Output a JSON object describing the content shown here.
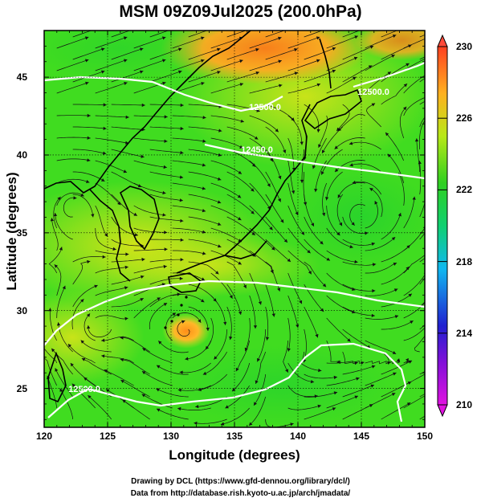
{
  "title": "MSM 09Z09Jul2025 (200.0hPa)",
  "chart_data": {
    "type": "heatmap",
    "title": "MSM 09Z09Jul2025 (200.0hPa)",
    "xlabel": "Longitude (degrees)",
    "ylabel": "Latitude  (degrees)",
    "xlim": [
      120,
      150
    ],
    "ylim": [
      22.5,
      48
    ],
    "x_ticks": [
      "120",
      "125",
      "130",
      "135",
      "140",
      "145",
      "150"
    ],
    "y_ticks": [
      "25",
      "30",
      "35",
      "40",
      "45"
    ],
    "colorbar": {
      "range": [
        210,
        230
      ],
      "ticks": [
        "210",
        "214",
        "218",
        "222",
        "226",
        "230"
      ]
    },
    "contour_labels": [
      "12500.0",
      "12450.0",
      "12500.0",
      "12500.0"
    ],
    "features": {
      "warm_anomalies": [
        {
          "lon": 133,
          "lat": 47,
          "value": 228
        },
        {
          "lon": 131,
          "lat": 29,
          "value": 227.5
        },
        {
          "lon": 123,
          "lat": 29,
          "value": 225
        }
      ],
      "colors": {
        "background": "#33dd22",
        "yellowish": "#c8ea1e",
        "orange": "#ff8a1e"
      }
    }
  },
  "credits": {
    "line1": "Drawing by DCL (https://www.gfd-dennou.org/library/dcl/)",
    "line2": "Data from http://database.rish.kyoto-u.ac.jp/arch/jmadata/"
  }
}
